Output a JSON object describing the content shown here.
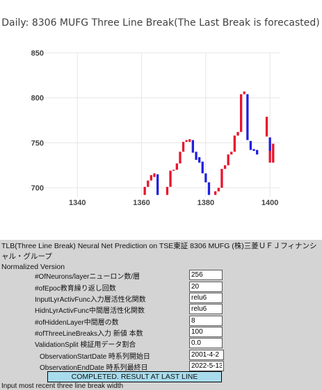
{
  "chart_data": {
    "type": "bar",
    "title": "Daily: 8306 MUFG Three Line Break(The Last Break is forecasted)",
    "xlim": [
      1325,
      1403
    ],
    "ylim": [
      690,
      850
    ],
    "x_ticks": [
      1340,
      1360,
      1380,
      1400
    ],
    "y_ticks": [
      700,
      750,
      800,
      850
    ],
    "grid": true,
    "series": [
      {
        "color": "#e8142c",
        "bricks": [
          {
            "x": 1361,
            "low": 692,
            "high": 701
          },
          {
            "x": 1362,
            "low": 701,
            "high": 708
          },
          {
            "x": 1363,
            "low": 708,
            "high": 714
          },
          {
            "x": 1364,
            "low": 712,
            "high": 716
          },
          {
            "x": 1368,
            "low": 692,
            "high": 701
          },
          {
            "x": 1369,
            "low": 701,
            "high": 719
          },
          {
            "x": 1370,
            "low": 719,
            "high": 720
          },
          {
            "x": 1371,
            "low": 720,
            "high": 727
          },
          {
            "x": 1372,
            "low": 727,
            "high": 740
          },
          {
            "x": 1373,
            "low": 740,
            "high": 751
          },
          {
            "x": 1374,
            "low": 751,
            "high": 753
          },
          {
            "x": 1375,
            "low": 751,
            "high": 754
          },
          {
            "x": 1383,
            "low": 692,
            "high": 696
          },
          {
            "x": 1384,
            "low": 696,
            "high": 700
          },
          {
            "x": 1385,
            "low": 700,
            "high": 721
          },
          {
            "x": 1386,
            "low": 721,
            "high": 725
          },
          {
            "x": 1387,
            "low": 725,
            "high": 737
          },
          {
            "x": 1388,
            "low": 737,
            "high": 740
          },
          {
            "x": 1389,
            "low": 740,
            "high": 758
          },
          {
            "x": 1390,
            "low": 758,
            "high": 762
          },
          {
            "x": 1391,
            "low": 762,
            "high": 804
          },
          {
            "x": 1392,
            "low": 804,
            "high": 807
          },
          {
            "x": 1399,
            "low": 757,
            "high": 779
          },
          {
            "x": 1400,
            "low": 728,
            "high": 749
          },
          {
            "x": 1401,
            "low": 728,
            "high": 749
          }
        ]
      },
      {
        "color": "#2020e0",
        "bricks": [
          {
            "x": 1365,
            "low": 692,
            "high": 715
          },
          {
            "x": 1376,
            "low": 739,
            "high": 753
          },
          {
            "x": 1377,
            "low": 731,
            "high": 740
          },
          {
            "x": 1378,
            "low": 728,
            "high": 734
          },
          {
            "x": 1379,
            "low": 716,
            "high": 729
          },
          {
            "x": 1380,
            "low": 706,
            "high": 716
          },
          {
            "x": 1381,
            "low": 692,
            "high": 706
          },
          {
            "x": 1393,
            "low": 753,
            "high": 804
          },
          {
            "x": 1394,
            "low": 742,
            "high": 752
          },
          {
            "x": 1395,
            "low": 741,
            "high": 743
          },
          {
            "x": 1396,
            "low": 737,
            "high": 742
          },
          {
            "x": 1400,
            "low": 741,
            "high": 756
          }
        ]
      }
    ]
  },
  "description": {
    "text": "TLB(Three Line Break) Neural Net Prediction on TSE東証 8306 MUFG (株)三菱ＵＦＪフィナンシャル・グループ",
    "version": "Normalized Version"
  },
  "form": {
    "rows": [
      {
        "label": "#OfNeurons/layerニューロン数/層",
        "value": "256"
      },
      {
        "label": "#ofEpoc教育繰り返し回数",
        "value": "20"
      },
      {
        "label": "InputLyrActivFunc入力層活性化関数",
        "value": "relu6"
      },
      {
        "label": "HidnLyrActivFunc中間層活性化関数",
        "value": "relu6"
      },
      {
        "label": "#ofHiddenLayer中間層の数",
        "value": "8"
      },
      {
        "label": "#ofThreeLineBreaks入力 新値 本数",
        "value": "100"
      },
      {
        "label": "ValidationSplit 検証用データ割合",
        "value": "0.0"
      },
      {
        "label": "ObservationStartDate 時系列開始日",
        "value": "2001-4-2"
      },
      {
        "label": "ObservationEndDate 時系列最終日",
        "value": "2022-5-13"
      }
    ],
    "status": "COMPLETED.  RESULT AT LAST LINE",
    "footer": "Input most recent three line break width"
  }
}
